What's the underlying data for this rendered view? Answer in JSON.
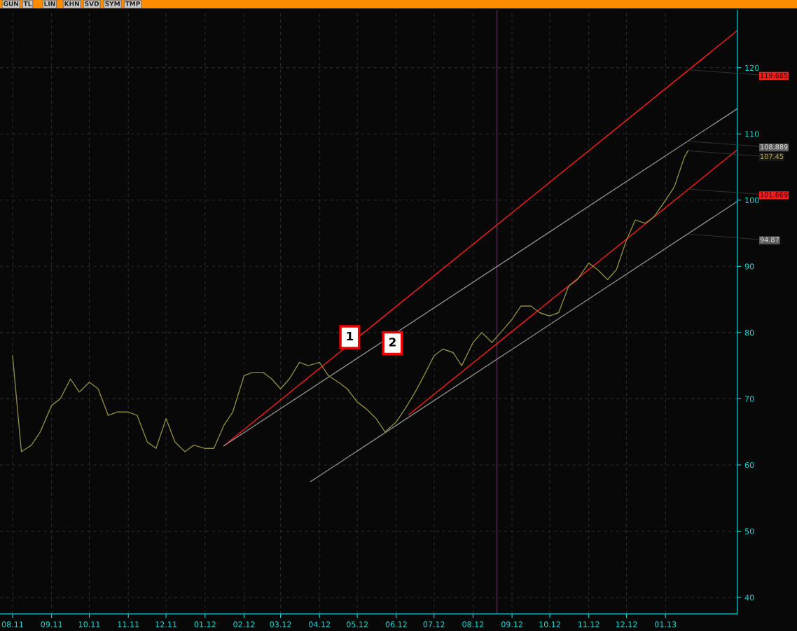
{
  "chart_data": {
    "type": "line",
    "xlim": [
      "2011-07-22",
      "2013-02-27"
    ],
    "ylim": [
      37.5,
      128.7
    ],
    "xticks": [
      {
        "value": "2011-08-01",
        "label": "08.11"
      },
      {
        "value": "2011-09-01",
        "label": "09.11"
      },
      {
        "value": "2011-10-01",
        "label": "10.11"
      },
      {
        "value": "2011-11-01",
        "label": "11.11"
      },
      {
        "value": "2011-12-01",
        "label": "12.11"
      },
      {
        "value": "2012-01-01",
        "label": "01.12"
      },
      {
        "value": "2012-02-01",
        "label": "02.12"
      },
      {
        "value": "2012-03-01",
        "label": "03.12"
      },
      {
        "value": "2012-04-01",
        "label": "04.12"
      },
      {
        "value": "2012-05-01",
        "label": "05.12"
      },
      {
        "value": "2012-06-01",
        "label": "06.12"
      },
      {
        "value": "2012-07-01",
        "label": "07.12"
      },
      {
        "value": "2012-08-01",
        "label": "08.12"
      },
      {
        "value": "2012-09-01",
        "label": "09.12"
      },
      {
        "value": "2012-10-01",
        "label": "10.12"
      },
      {
        "value": "2012-11-01",
        "label": "11.12"
      },
      {
        "value": "2012-12-01",
        "label": "12.12"
      },
      {
        "value": "2013-01-01",
        "label": "01.13"
      }
    ],
    "yticks": [
      40,
      50,
      60,
      70,
      80,
      90,
      100,
      110,
      120
    ],
    "grid": true,
    "series": [
      {
        "color": "#8c8a3c",
        "x": [
          "2011-08-01",
          "2011-08-08",
          "2011-08-16",
          "2011-08-23",
          "2011-09-01",
          "2011-09-08",
          "2011-09-16",
          "2011-09-23",
          "2011-10-01",
          "2011-10-08",
          "2011-10-16",
          "2011-10-23",
          "2011-11-01",
          "2011-11-08",
          "2011-11-16",
          "2011-11-23",
          "2011-12-01",
          "2011-12-08",
          "2011-12-16",
          "2011-12-23",
          "2012-01-01",
          "2012-01-08",
          "2012-01-16",
          "2012-01-23",
          "2012-02-01",
          "2012-02-08",
          "2012-02-16",
          "2012-02-23",
          "2012-03-01",
          "2012-03-08",
          "2012-03-16",
          "2012-03-23",
          "2012-04-01",
          "2012-04-08",
          "2012-04-16",
          "2012-04-23",
          "2012-05-01",
          "2012-05-08",
          "2012-05-16",
          "2012-05-23",
          "2012-06-01",
          "2012-06-08",
          "2012-06-16",
          "2012-06-23",
          "2012-07-01",
          "2012-07-08",
          "2012-07-16",
          "2012-07-23",
          "2012-08-01",
          "2012-08-08",
          "2012-08-16",
          "2012-08-23",
          "2012-09-01",
          "2012-09-08",
          "2012-09-16",
          "2012-09-23",
          "2012-10-01",
          "2012-10-08",
          "2012-10-16",
          "2012-10-23",
          "2012-11-01",
          "2012-11-08",
          "2012-11-16",
          "2012-11-23",
          "2012-12-01",
          "2012-12-08",
          "2012-12-16",
          "2012-12-23",
          "2013-01-01",
          "2013-01-08",
          "2013-01-16",
          "2013-01-19"
        ],
        "values": [
          76.5,
          62,
          63,
          65,
          69,
          70,
          73,
          71,
          72.5,
          71.5,
          67.5,
          68,
          68,
          67.5,
          63.5,
          62.5,
          67,
          63.5,
          62,
          63,
          62.5,
          62.5,
          66,
          68,
          73.5,
          74,
          74,
          73,
          71.5,
          73,
          75.5,
          75,
          75.5,
          73.5,
          72.5,
          71.5,
          69.5,
          68.5,
          67,
          65,
          66.5,
          68.5,
          71,
          73.5,
          76.5,
          77.5,
          77,
          75,
          78.5,
          80,
          78.5,
          80,
          82,
          84,
          84,
          83,
          82.5,
          83,
          87,
          88,
          90.5,
          89.5,
          88,
          89.5,
          94,
          97,
          96.5,
          97.5,
          100,
          102,
          106.5,
          107.5
        ]
      },
      {
        "color": "#ff1a1a",
        "x": [
          "2012-01-16",
          "2013-02-27"
        ],
        "values": [
          62.9,
          125.6
        ]
      },
      {
        "color": "#8a8a8a",
        "x": [
          "2012-01-16",
          "2013-02-27"
        ],
        "values": [
          62.9,
          113.8
        ]
      },
      {
        "color": "#ff1a1a",
        "x": [
          "2012-06-11",
          "2013-02-27"
        ],
        "values": [
          67.6,
          107.6
        ]
      },
      {
        "color": "#8a8a8a",
        "x": [
          "2012-03-25",
          "2013-02-27"
        ],
        "values": [
          57.5,
          99.8
        ]
      }
    ],
    "ref_lines": [
      {
        "axis": "x",
        "value": "2012-08-20",
        "color": "#5a2a5a"
      }
    ],
    "annotations": [
      "GUN",
      "TL",
      "LIN",
      "KHN",
      "SVD",
      "SYM",
      "TMP",
      {
        "text": "1",
        "x": "2012-04-25",
        "y": 79.3
      },
      {
        "text": "2",
        "x": "2012-05-29",
        "y": 78.4
      },
      {
        "text": "119.685",
        "x": "2013-01-19",
        "y": 119.685
      },
      {
        "text": "108.889",
        "x": "2013-01-19",
        "y": 108.889
      },
      {
        "text": "107.45",
        "x": "2013-01-19",
        "y": 107.45
      },
      {
        "text": "101.669",
        "x": "2013-01-19",
        "y": 101.669
      },
      {
        "text": "94.87",
        "x": "2013-01-19",
        "y": 94.87
      }
    ]
  }
}
